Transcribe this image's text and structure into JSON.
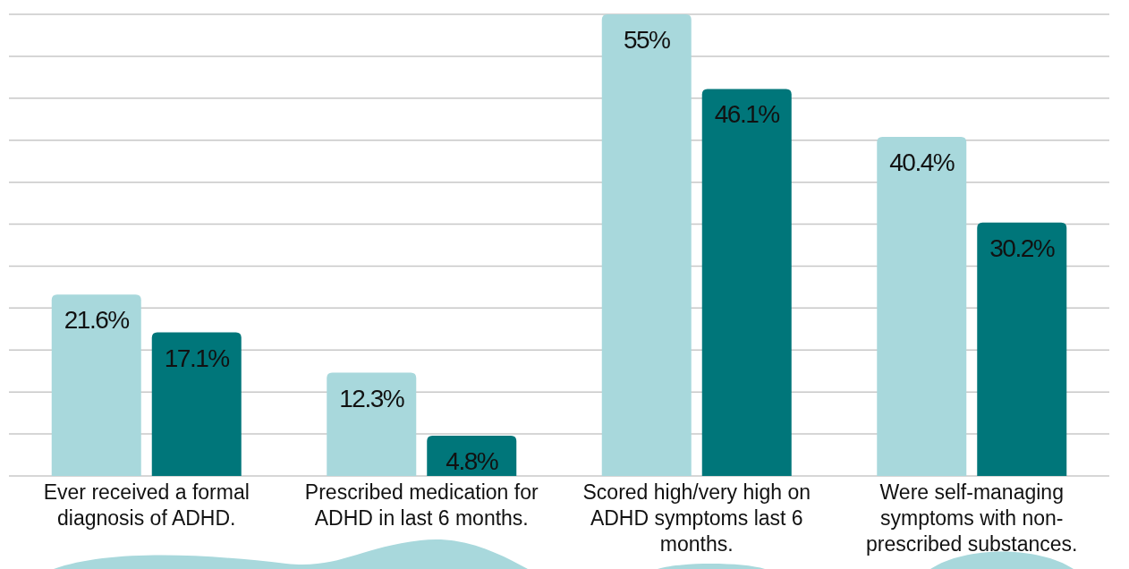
{
  "chart_data": {
    "type": "bar",
    "categories": [
      "Ever received a formal diagnosis of ADHD.",
      "Prescribed medication for ADHD in last 6 months.",
      "Scored high/very high on ADHD symptoms last 6 months.",
      "Were self-managing symptoms with non-prescribed substances."
    ],
    "series": [
      {
        "color": "#a8d8dc",
        "values": [
          21.6,
          12.3,
          55,
          40.4
        ],
        "value_labels": [
          "21.6%",
          "12.3%",
          "55%",
          "40.4%"
        ]
      },
      {
        "color": "#00767a",
        "values": [
          17.1,
          4.8,
          46.1,
          30.2
        ],
        "value_labels": [
          "17.1%",
          "4.8%",
          "46.1%",
          "30.2%"
        ]
      }
    ],
    "grid": "y",
    "tick_labels": false
  }
}
